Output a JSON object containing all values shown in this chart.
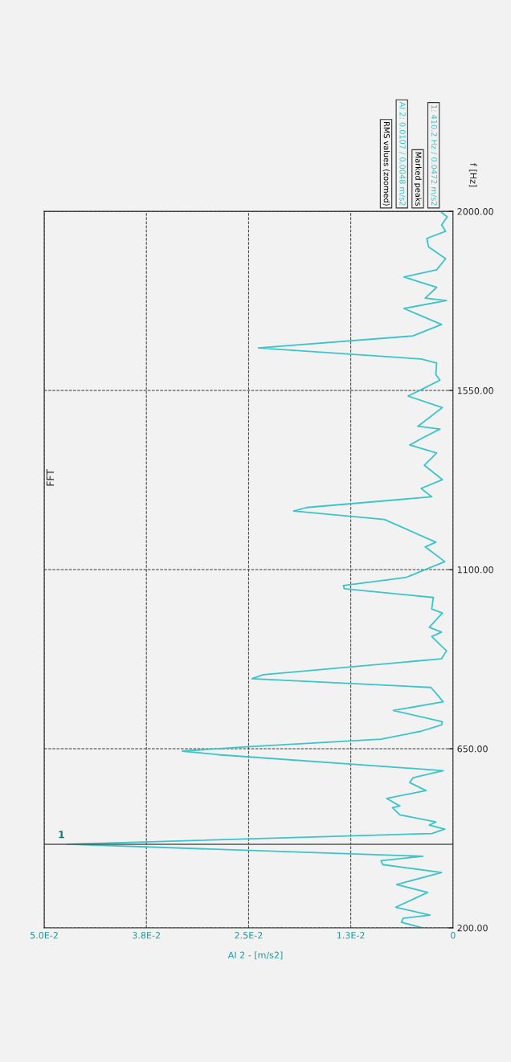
{
  "chart_data": {
    "type": "line",
    "title": "FFT",
    "xlabel": "AI 2 - [m/s2]",
    "ylabel": "f [Hz]",
    "legend_title": "RMS values (zoomed)",
    "legend": "top right",
    "grid": true,
    "line_style": "solid",
    "series": [
      {
        "name": "AI 2: 0.0107 / 0.0048 m/s2",
        "color": "#3cc4c8",
        "x": [
          0.0037,
          0.0063,
          0.0061,
          0.0028,
          0.007,
          0.0031,
          0.0069,
          0.0014,
          0.0086,
          0.0088,
          0.0037,
          0.0472,
          0.0026,
          0.001,
          0.0029,
          0.0021,
          0.0065,
          0.0074,
          0.0065,
          0.0081,
          0.0033,
          0.0053,
          0.0049,
          0.0012,
          0.0287,
          0.0331,
          0.0252,
          0.0088,
          0.0039,
          0.0014,
          0.0013,
          0.0073,
          0.0012,
          0.0021,
          0.0027,
          0.0246,
          0.0232,
          0.0014,
          0.0008,
          0.0026,
          0.0014,
          0.0029,
          0.0013,
          0.0026,
          0.0024,
          0.0133,
          0.0134,
          0.0058,
          0.001,
          0.0034,
          0.0021,
          0.0084,
          0.0195,
          0.0179,
          0.0026,
          0.0039,
          0.0013,
          0.0035,
          0.002,
          0.0053,
          0.0037,
          0.0016,
          0.0043,
          0.0013,
          0.0055,
          0.0041,
          0.0016,
          0.0021,
          0.002,
          0.0039,
          0.0238,
          0.0049,
          0.0014,
          0.006,
          0.0008,
          0.0034,
          0.002,
          0.006,
          0.002,
          0.0009,
          0.003,
          0.0032,
          0.0009,
          0.0014,
          0.0007,
          0.0014
        ],
        "values": [
          200,
          214,
          224,
          232,
          252,
          289,
          309,
          339,
          359,
          369,
          380,
          410,
          437,
          448,
          458,
          466,
          484,
          502,
          506,
          525,
          545,
          565,
          577,
          595,
          635,
          644,
          655,
          674,
          694,
          710,
          718,
          746,
          768,
          790,
          804,
          826,
          836,
          876,
          896,
          932,
          943,
          955,
          991,
          1001,
          1030,
          1052,
          1060,
          1080,
          1120,
          1157,
          1169,
          1226,
          1247,
          1256,
          1283,
          1304,
          1326,
          1362,
          1393,
          1413,
          1431,
          1453,
          1460,
          1507,
          1536,
          1550,
          1576,
          1590,
          1619,
          1629,
          1657,
          1687,
          1716,
          1756,
          1776,
          1782,
          1809,
          1835,
          1853,
          1881,
          1911,
          1932,
          1950,
          1966,
          1986,
          1997
        ]
      }
    ],
    "ylim": [
      200,
      2000
    ],
    "yticks": [
      {
        "value": 200,
        "label": "200.00"
      },
      {
        "value": 650,
        "label": "650.00"
      },
      {
        "value": 1100,
        "label": "1100.00"
      },
      {
        "value": 1550,
        "label": "1550.00"
      },
      {
        "value": 2000,
        "label": "2000.00"
      }
    ],
    "xlim": [
      0.05,
      0
    ],
    "xticks": [
      {
        "value": 0,
        "label": "0"
      },
      {
        "value": 0.0125,
        "label": "1.3E-2"
      },
      {
        "value": 0.025,
        "label": "2.5E-2"
      },
      {
        "value": 0.0375,
        "label": "3.8E-2"
      },
      {
        "value": 0.05,
        "label": "5.0E-2"
      }
    ],
    "ref_lines": [
      {
        "axis": "y",
        "value": 410,
        "color": "#555555",
        "line_style": "solid"
      }
    ],
    "annotations": [
      "Marked peaks",
      "1: 410.2 Hz / 0.0472 m/s2",
      {
        "text": "1",
        "x": 0.0472,
        "y": 410
      }
    ]
  }
}
